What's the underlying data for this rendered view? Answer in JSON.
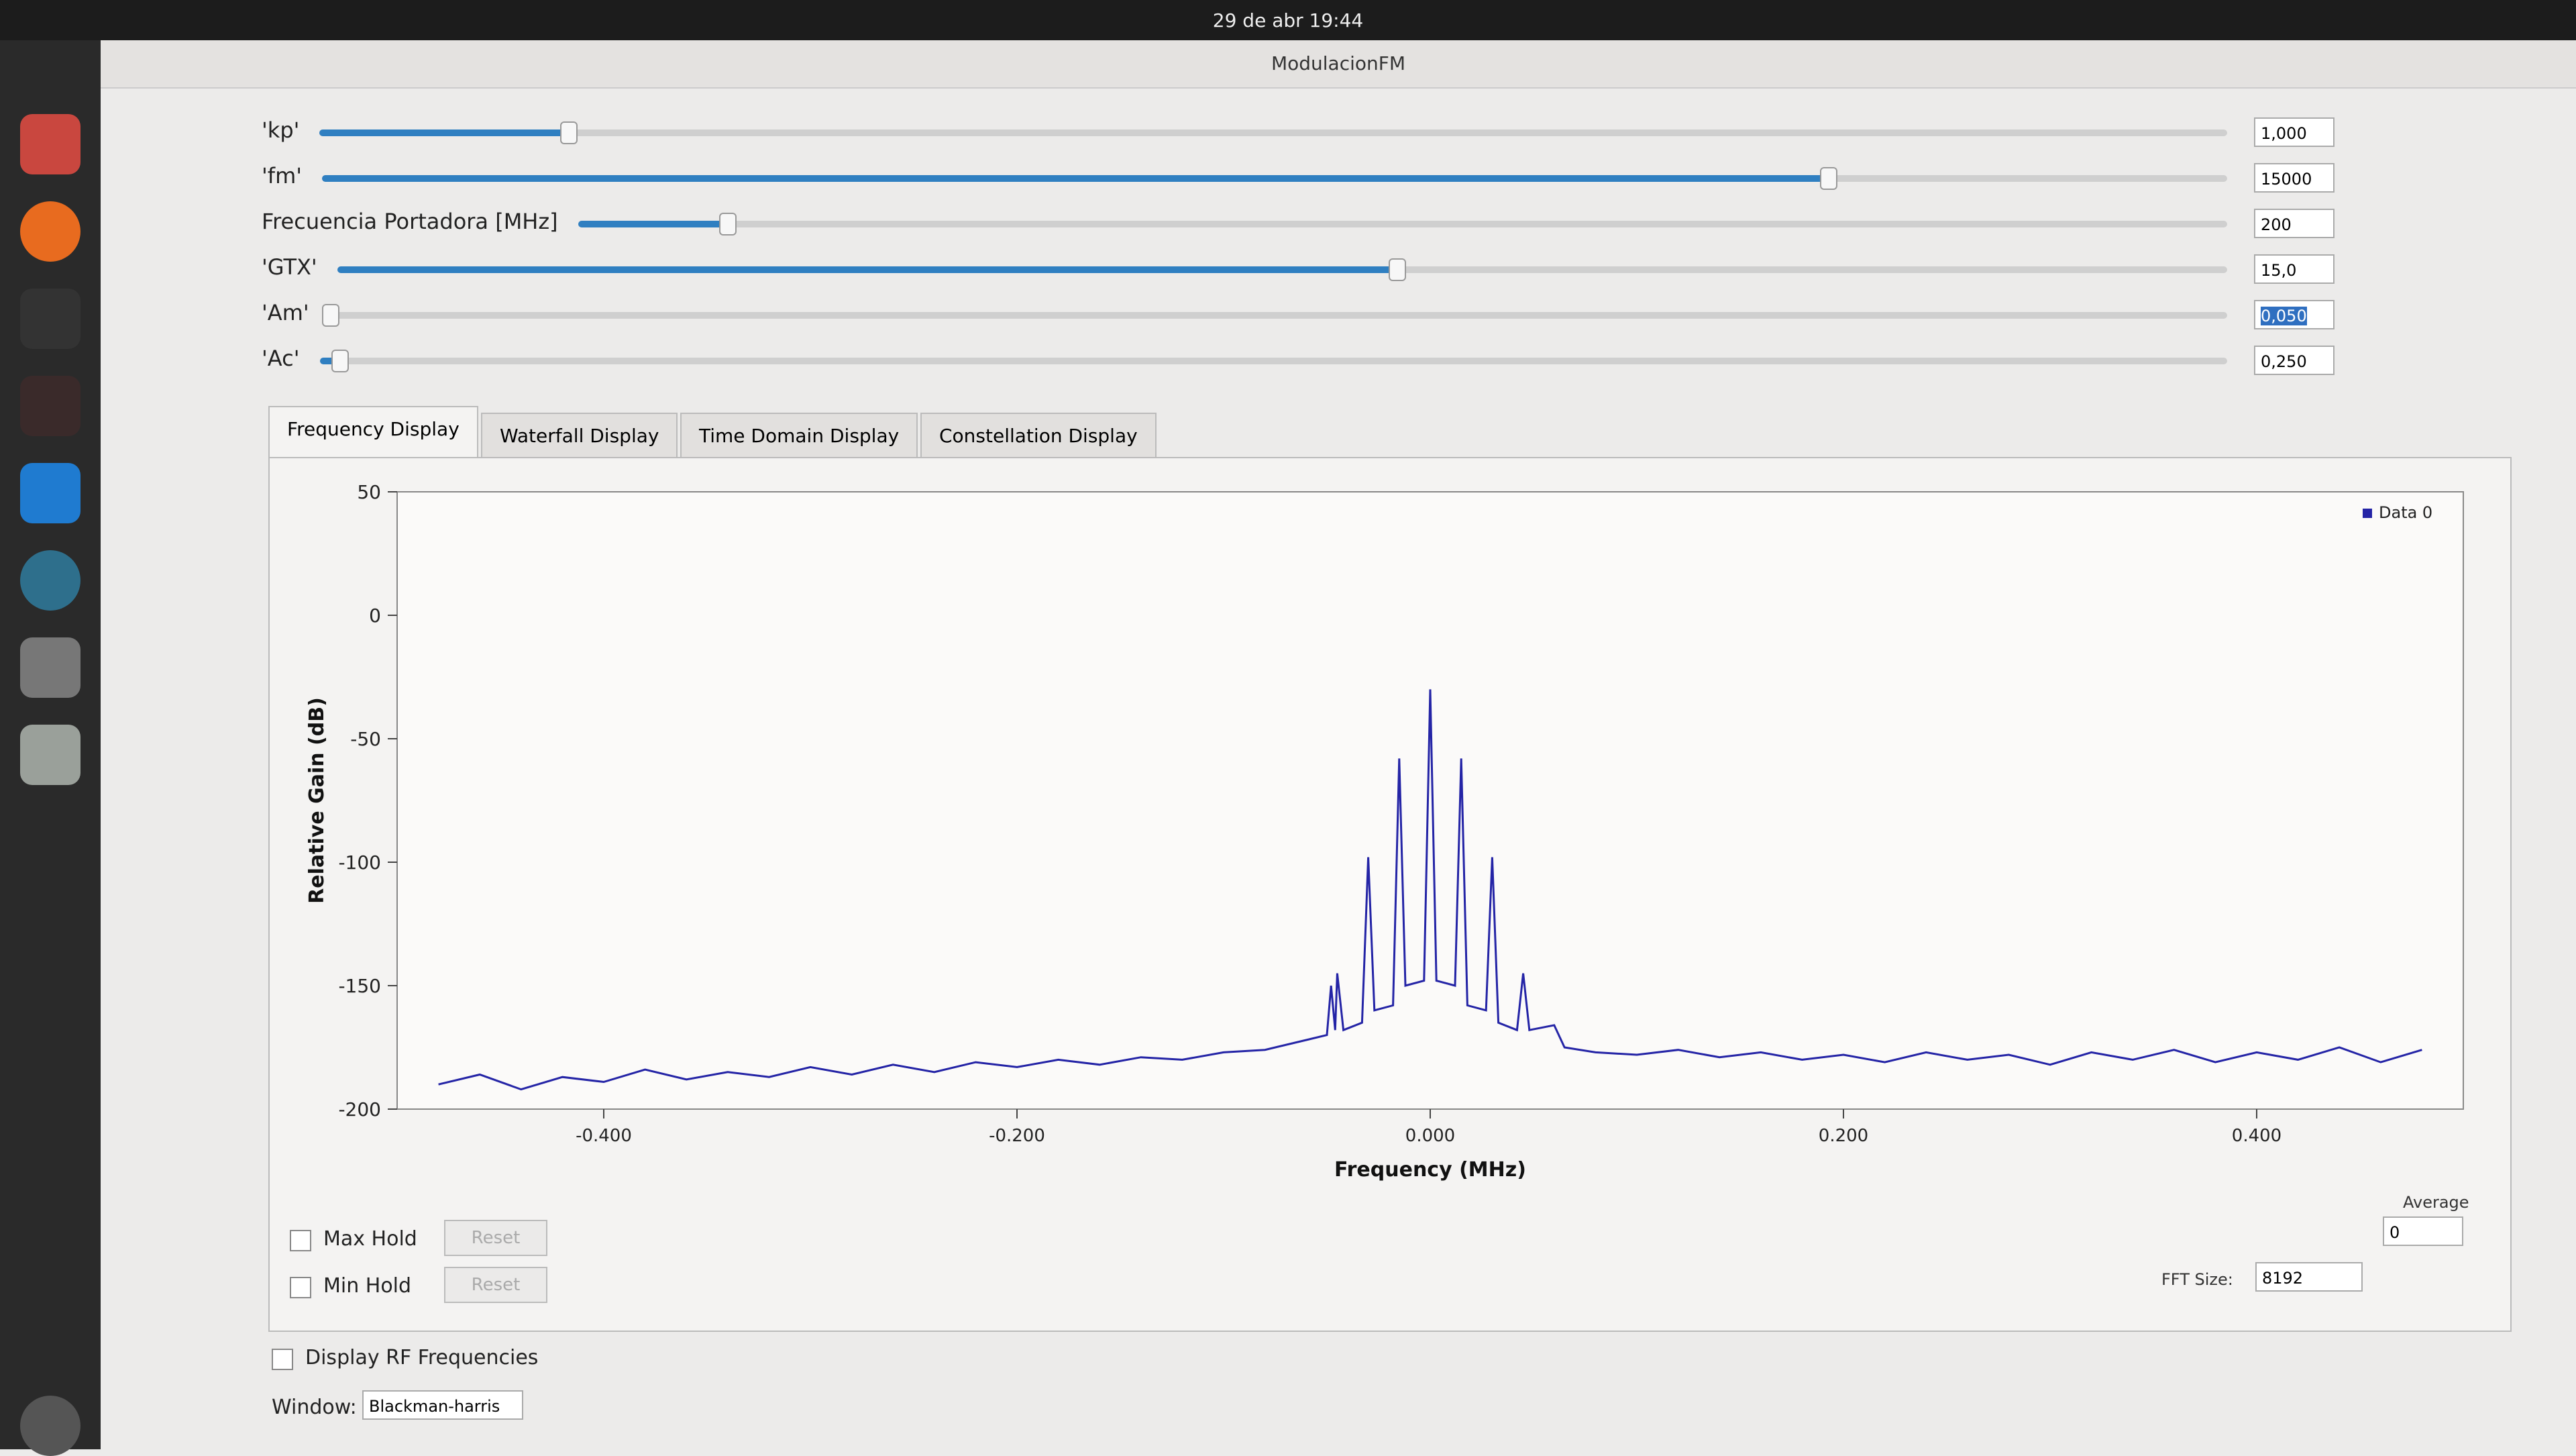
{
  "topbar": {
    "clock": "29 de abr 19:44"
  },
  "window": {
    "title": "ModulacionFM"
  },
  "controls": [
    {
      "label": "'kp'",
      "value": "1,000"
    },
    {
      "label": "'fm'",
      "value": "15000"
    },
    {
      "label": "Frecuencia Portadora [MHz]",
      "value": "200"
    },
    {
      "label": "'GTX'",
      "value": "15,0"
    },
    {
      "label": "'Am'",
      "value": "0,050"
    },
    {
      "label": "'Ac'",
      "value": "0,250"
    }
  ],
  "tabs": [
    "Frequency Display",
    "Waterfall Display",
    "Time Domain Display",
    "Constellation Display"
  ],
  "chart_data": {
    "type": "line",
    "xlabel": "Frequency (MHz)",
    "ylabel": "Relative Gain (dB)",
    "x": [
      -0.48,
      -0.46,
      -0.44,
      -0.42,
      -0.4,
      -0.38,
      -0.36,
      -0.34,
      -0.32,
      -0.3,
      -0.28,
      -0.26,
      -0.24,
      -0.22,
      -0.2,
      -0.18,
      -0.16,
      -0.14,
      -0.12,
      -0.1,
      -0.08,
      -0.06,
      -0.05,
      -0.048,
      -0.046,
      -0.045,
      -0.042,
      -0.033,
      -0.03,
      -0.027,
      -0.018,
      -0.015,
      -0.012,
      -0.003,
      0.0,
      0.003,
      0.012,
      0.015,
      0.018,
      0.027,
      0.03,
      0.033,
      0.042,
      0.045,
      0.048,
      0.06,
      0.065,
      0.08,
      0.1,
      0.12,
      0.14,
      0.16,
      0.18,
      0.2,
      0.22,
      0.24,
      0.26,
      0.28,
      0.3,
      0.32,
      0.34,
      0.36,
      0.38,
      0.4,
      0.42,
      0.44,
      0.46,
      0.48
    ],
    "series": [
      {
        "name": "Data 0",
        "color": "#2424a6",
        "values": [
          -190,
          -186,
          -192,
          -187,
          -189,
          -184,
          -188,
          -185,
          -187,
          -183,
          -186,
          -182,
          -185,
          -181,
          -183,
          -180,
          -182,
          -179,
          -180,
          -177,
          -176,
          -172,
          -170,
          -150,
          -168,
          -145,
          -168,
          -165,
          -98,
          -160,
          -158,
          -58,
          -150,
          -148,
          -30,
          -148,
          -150,
          -58,
          -158,
          -160,
          -98,
          -165,
          -168,
          -145,
          -168,
          -166,
          -175,
          -177,
          -178,
          -176,
          -179,
          -177,
          -180,
          -178,
          -181,
          -177,
          -180,
          -178,
          -182,
          -177,
          -180,
          -176,
          -181,
          -177,
          -180,
          -175,
          -181,
          -176
        ]
      }
    ],
    "xlim": [
      -0.5,
      0.5
    ],
    "ylim": [
      -200,
      50
    ],
    "xticks": [
      {
        "value": -0.4,
        "label": "-0.400"
      },
      {
        "value": -0.2,
        "label": "-0.200"
      },
      {
        "value": 0,
        "label": "0.000"
      },
      {
        "value": 0.2,
        "label": "0.200"
      },
      {
        "value": 0.4,
        "label": "0.400"
      }
    ],
    "yticks": [
      50,
      0,
      -50,
      -100,
      -150,
      -200
    ],
    "legend": "upper right"
  },
  "options": {
    "average_label": "Average",
    "average_value": "0",
    "fft_label": "FFT Size:",
    "fft_value": "8192",
    "max_hold": "Max Hold",
    "max_reset": "Reset",
    "min_hold": "Min Hold",
    "min_reset": "Reset",
    "rf": "Display RF Frequencies",
    "window_label": "Window:",
    "window_value": "Blackman-harris"
  }
}
